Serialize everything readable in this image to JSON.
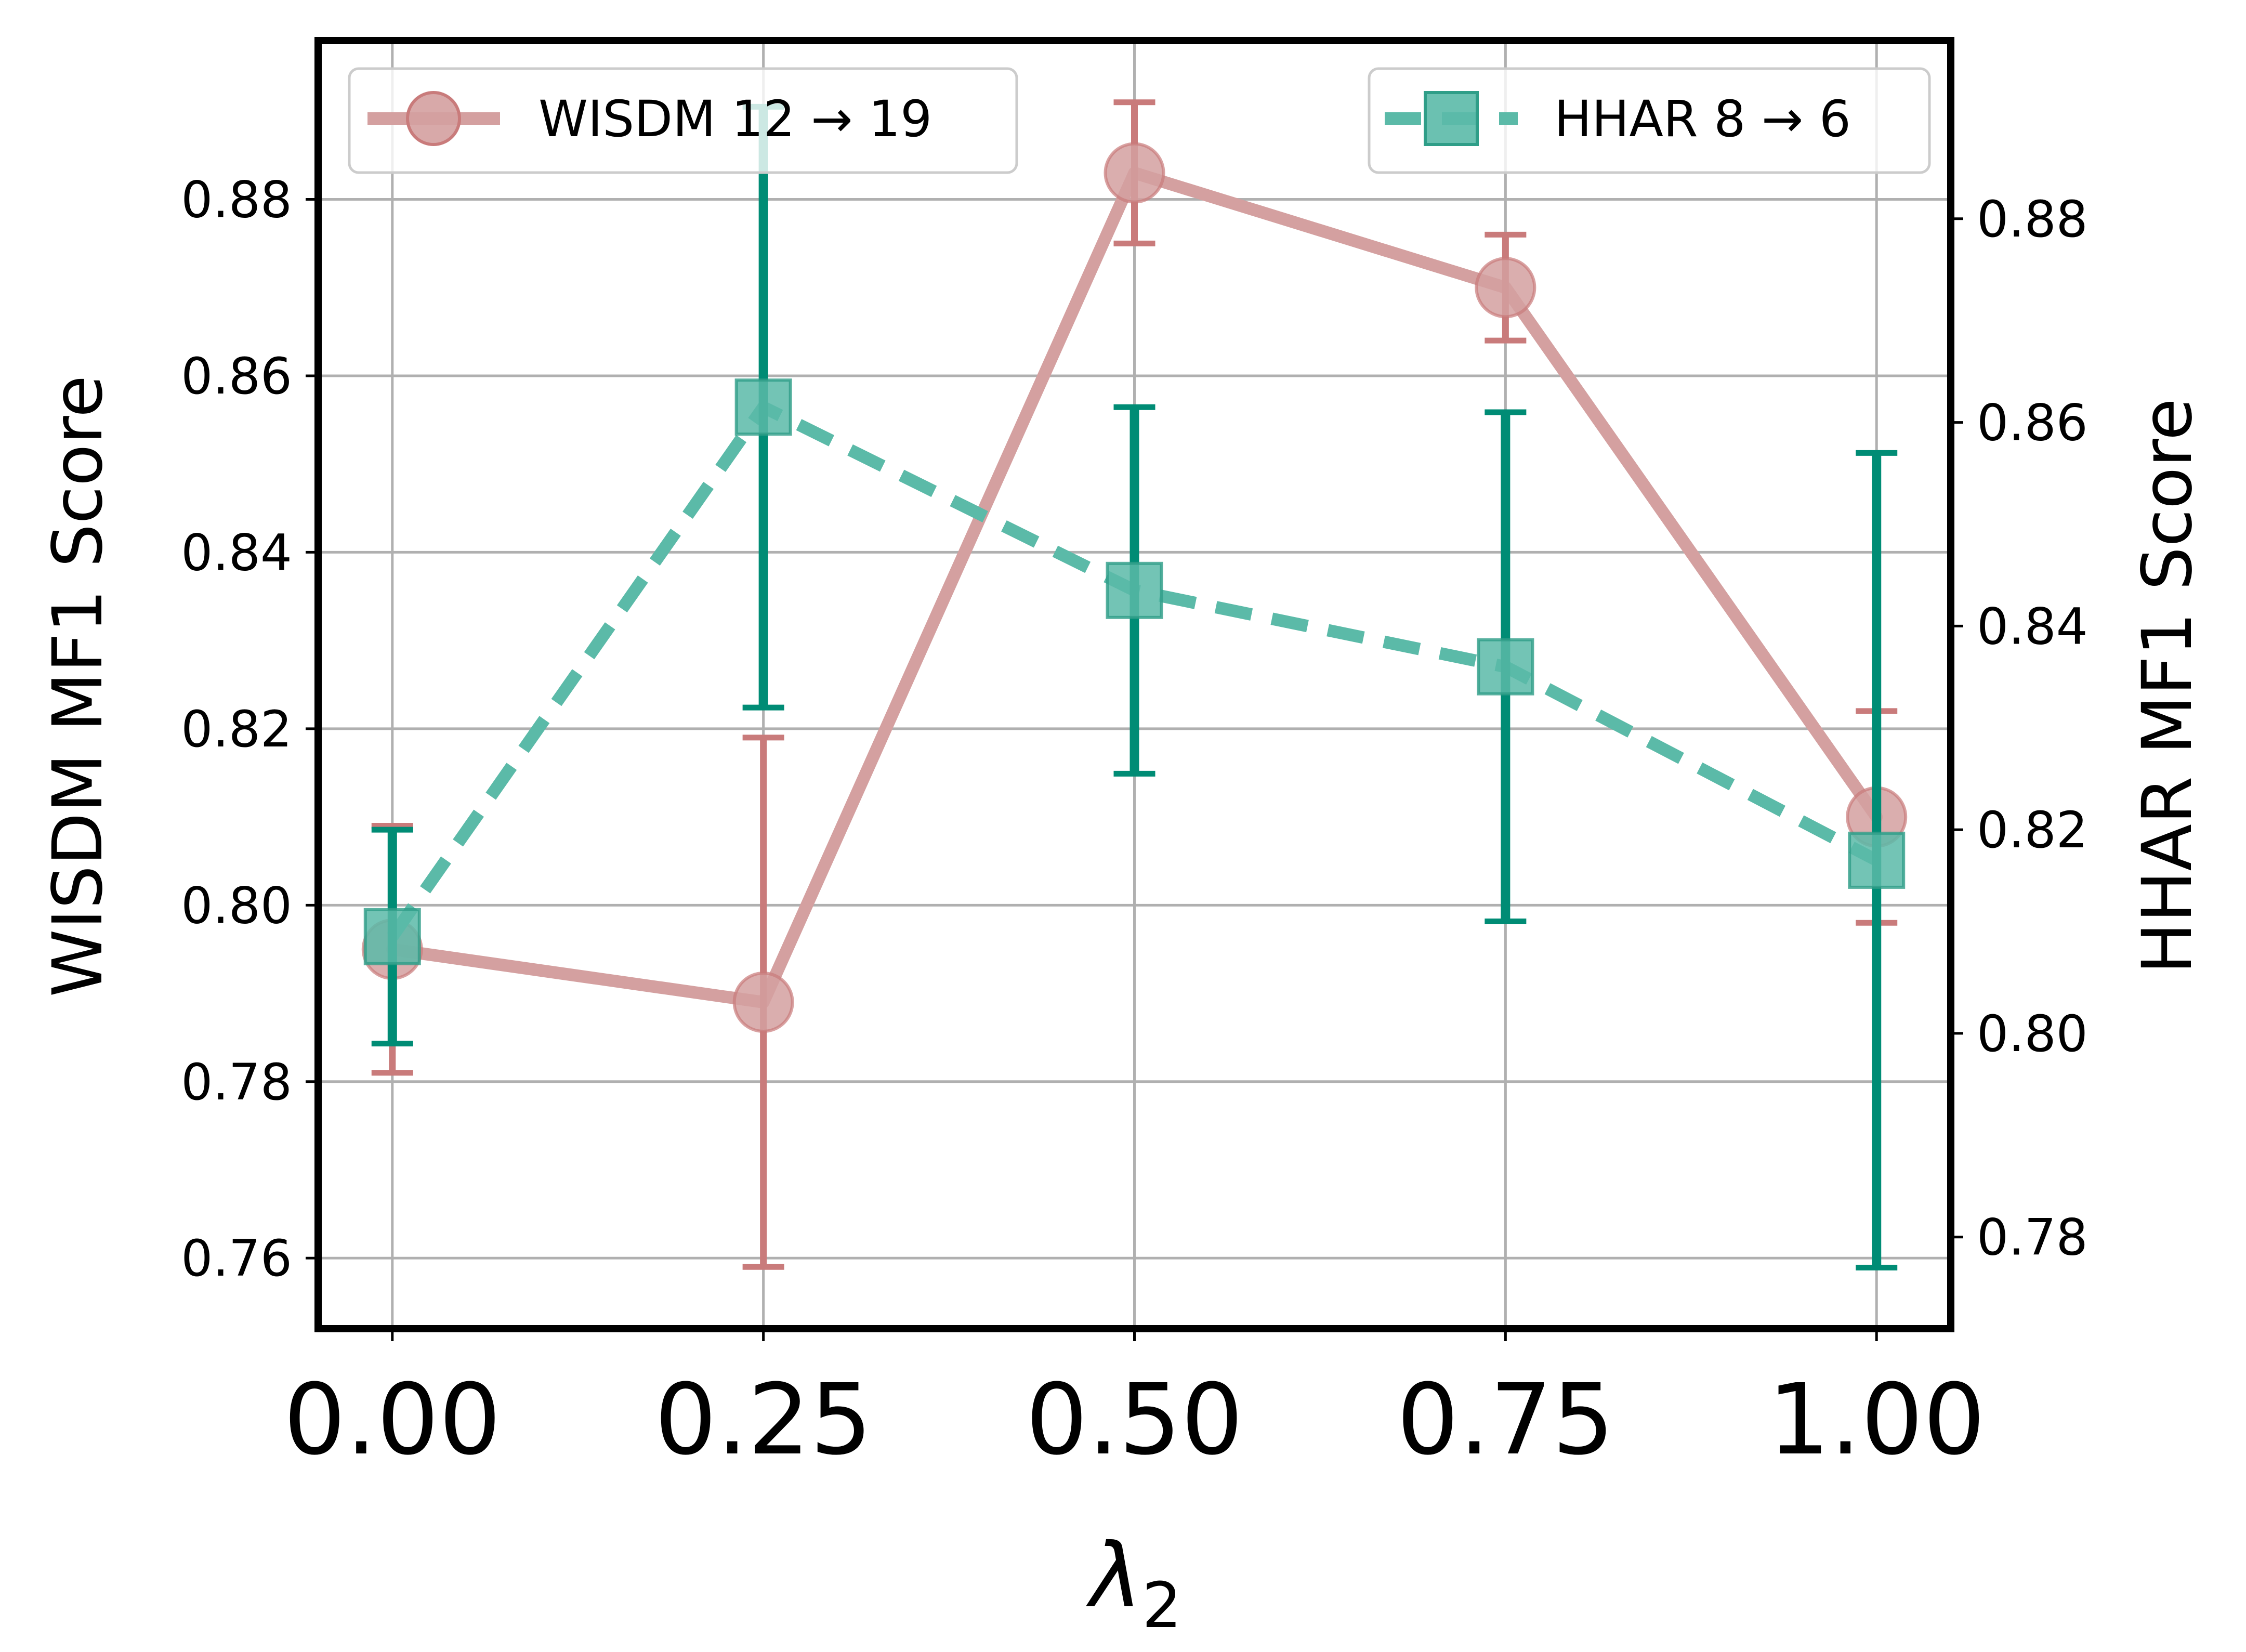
{
  "chart_data": {
    "type": "line",
    "xlabel": "λ",
    "xlabel_subscript": "2",
    "ylabel_left": "WISDM MF1 Score",
    "ylabel_right": "HHAR MF1 Score",
    "x": [
      0.0,
      0.25,
      0.5,
      0.75,
      1.0
    ],
    "x_tick_labels": [
      "0.00",
      "0.25",
      "0.50",
      "0.75",
      "1.00"
    ],
    "xlim": [
      -0.05,
      1.05
    ],
    "y_left_ticks": [
      "0.76",
      "0.78",
      "0.80",
      "0.82",
      "0.84",
      "0.86",
      "0.88"
    ],
    "ylim_left": [
      0.752,
      0.898
    ],
    "y_right_ticks": [
      "0.78",
      "0.80",
      "0.82",
      "0.84",
      "0.86",
      "0.88"
    ],
    "ylim_right": [
      0.771,
      0.8975
    ],
    "grid": true,
    "series": [
      {
        "name": "WISDM 12 → 19",
        "axis": "left",
        "marker": "circle",
        "linestyle": "solid",
        "line_color": "#d4a0a0",
        "errorbar_color": "#c97b7b",
        "values": [
          0.795,
          0.789,
          0.883,
          0.87,
          0.81
        ],
        "errors": [
          0.014,
          0.03,
          0.008,
          0.006,
          0.012
        ],
        "legend_position": "upper-left"
      },
      {
        "name": "HHAR 8 → 6",
        "axis": "right",
        "marker": "square",
        "linestyle": "dashed",
        "line_color": "#5bbaa8",
        "errorbar_color": "#008c75",
        "values": [
          0.8095,
          0.8615,
          0.8435,
          0.836,
          0.817
        ],
        "errors": [
          0.0105,
          0.0295,
          0.018,
          0.025,
          0.04
        ],
        "legend_position": "upper-right"
      }
    ]
  }
}
